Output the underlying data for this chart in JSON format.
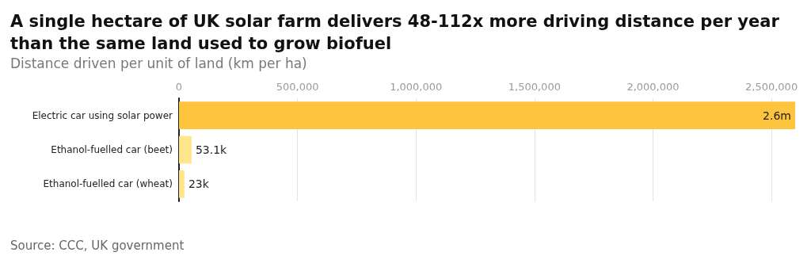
{
  "chart_data": {
    "type": "bar",
    "orientation": "horizontal",
    "title": "A single hectare of UK solar farm delivers 48-112x more driving distance per year than the same land used to grow biofuel",
    "subtitle": "Distance driven per unit of land (km per ha)",
    "categories": [
      "Electric car using solar power",
      "Ethanol-fuelled car (beet)",
      "Ethanol-fuelled car (wheat)"
    ],
    "values": [
      2600000,
      53100,
      23000
    ],
    "colors": [
      "#ffc43d",
      "#ffe68a",
      "#ffe68a"
    ],
    "value_labels": [
      "2.6m",
      "53.1k",
      "23k"
    ],
    "xlim": [
      0,
      2600000
    ],
    "xticks": [
      0,
      {
        "value": 500000,
        "label": "500,000"
      },
      {
        "value": 1000000,
        "label": "1,000,000"
      },
      {
        "value": 1500000,
        "label": "1,500,000"
      },
      {
        "value": 2000000,
        "label": "2,000,000"
      },
      {
        "value": 2500000,
        "label": "2,500,000"
      }
    ],
    "grid": "x",
    "annotations": [
      "Source: CCC, UK government"
    ]
  }
}
